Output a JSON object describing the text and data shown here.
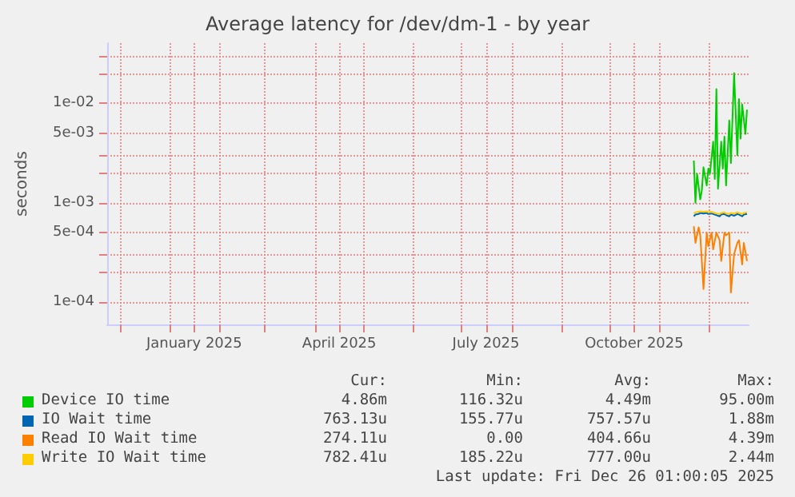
{
  "chart_data": {
    "type": "line",
    "title": "Average latency for /dev/dm-1 - by year",
    "ylabel": "seconds",
    "log": "y",
    "grid": true,
    "legend": "bottom",
    "marker": "none",
    "line_style": "solid",
    "xlim": [
      "2024-11-23",
      "2025-12-26"
    ],
    "xticks": [
      {
        "value": "2024-12-01",
        "label": null
      },
      {
        "value": "2025-01-01",
        "label": null
      },
      {
        "value": "2025-01-16",
        "label": "January 2025"
      },
      {
        "value": "2025-02-01",
        "label": null
      },
      {
        "value": "2025-03-01",
        "label": null
      },
      {
        "value": "2025-04-01",
        "label": null
      },
      {
        "value": "2025-04-16",
        "label": "April 2025"
      },
      {
        "value": "2025-05-01",
        "label": null
      },
      {
        "value": "2025-06-01",
        "label": null
      },
      {
        "value": "2025-07-01",
        "label": null
      },
      {
        "value": "2025-07-16",
        "label": "July 2025"
      },
      {
        "value": "2025-08-01",
        "label": null
      },
      {
        "value": "2025-09-01",
        "label": null
      },
      {
        "value": "2025-10-01",
        "label": null
      },
      {
        "value": "2025-10-16",
        "label": "October 2025"
      },
      {
        "value": "2025-11-01",
        "label": null
      },
      {
        "value": "2025-12-01",
        "label": null
      }
    ],
    "ylim": [
      6e-05,
      0.04
    ],
    "yticks": [
      {
        "value": 0.0001,
        "label": "1e-04"
      },
      {
        "value": 0.0002,
        "label": null
      },
      {
        "value": 0.0003,
        "label": null
      },
      {
        "value": 0.0005,
        "label": "5e-04"
      },
      {
        "value": 0.001,
        "label": "1e-03"
      },
      {
        "value": 0.002,
        "label": null
      },
      {
        "value": 0.003,
        "label": null
      },
      {
        "value": 0.005,
        "label": "5e-03"
      },
      {
        "value": 0.01,
        "label": "1e-02"
      },
      {
        "value": 0.02,
        "label": null
      },
      {
        "value": 0.03,
        "label": null
      }
    ],
    "series": [
      {
        "name": "Device IO time",
        "color": "#00cc00",
        "x": [
          "2025-11-22",
          "2025-11-23",
          "2025-11-24",
          "2025-11-26",
          "2025-11-27",
          "2025-11-28",
          "2025-11-30",
          "2025-12-01",
          "2025-12-02",
          "2025-12-04",
          "2025-12-05",
          "2025-12-06",
          "2025-12-07",
          "2025-12-09",
          "2025-12-10",
          "2025-12-11",
          "2025-12-12",
          "2025-12-14",
          "2025-12-15",
          "2025-12-16",
          "2025-12-17",
          "2025-12-19",
          "2025-12-20",
          "2025-12-21",
          "2025-12-22",
          "2025-12-24",
          "2025-12-25"
        ],
        "values": [
          0.00265,
          0.001,
          0.00195,
          0.00108,
          0.00134,
          0.00227,
          0.00149,
          0.0022,
          0.00195,
          0.0041,
          0.00173,
          0.0138,
          0.00138,
          0.0041,
          0.0022,
          0.0046,
          0.00149,
          0.0067,
          0.0025,
          0.0071,
          0.02,
          0.003,
          0.011,
          0.0044,
          0.0097,
          0.0049,
          0.0086
        ]
      },
      {
        "name": "IO Wait time",
        "color": "#0066b3",
        "x": [
          "2025-11-22",
          "2025-11-23",
          "2025-11-25",
          "2025-11-26",
          "2025-11-28",
          "2025-11-30",
          "2025-12-01",
          "2025-12-03",
          "2025-12-04",
          "2025-12-06",
          "2025-12-08",
          "2025-12-09",
          "2025-12-11",
          "2025-12-12",
          "2025-12-14",
          "2025-12-15",
          "2025-12-17",
          "2025-12-19",
          "2025-12-20",
          "2025-12-22",
          "2025-12-23",
          "2025-12-25"
        ],
        "values": [
          0.00073,
          0.00076,
          0.00077,
          0.00079,
          0.00078,
          0.00079,
          0.00077,
          0.00078,
          0.00077,
          0.00075,
          0.00073,
          0.00076,
          0.00077,
          0.00075,
          0.00073,
          0.00076,
          0.00074,
          0.00077,
          0.00076,
          0.00073,
          0.00076,
          0.00077
        ]
      },
      {
        "name": "Read IO Wait time",
        "color": "#ff8000",
        "x": [
          "2025-11-22",
          "2025-11-23",
          "2025-11-25",
          "2025-11-26",
          "2025-11-28",
          "2025-11-30",
          "2025-12-01",
          "2025-12-03",
          "2025-12-04",
          "2025-12-06",
          "2025-12-08",
          "2025-12-09",
          "2025-12-11",
          "2025-12-12",
          "2025-12-14",
          "2025-12-15",
          "2025-12-17",
          "2025-12-19",
          "2025-12-20",
          "2025-12-22",
          "2025-12-23",
          "2025-12-25"
        ],
        "values": [
          0.00058,
          0.000395,
          0.000566,
          0.00047,
          0.000136,
          0.0005,
          0.000366,
          0.0005,
          0.00034,
          0.0005,
          0.00042,
          0.00026,
          0.0005,
          0.00047,
          0.0005,
          0.000125,
          0.000305,
          0.000395,
          0.00042,
          0.00024,
          0.000395,
          0.00026
        ]
      },
      {
        "name": "Write IO Wait time",
        "color": "#ffcc00",
        "x": [
          "2025-11-22",
          "2025-11-23",
          "2025-11-25",
          "2025-11-26",
          "2025-11-28",
          "2025-11-30",
          "2025-12-01",
          "2025-12-03",
          "2025-12-04",
          "2025-12-06",
          "2025-12-08",
          "2025-12-09",
          "2025-12-11",
          "2025-12-12",
          "2025-12-14",
          "2025-12-15",
          "2025-12-17",
          "2025-12-19",
          "2025-12-20",
          "2025-12-22",
          "2025-12-23",
          "2025-12-25"
        ],
        "values": [
          0.00078,
          0.0008,
          0.00081,
          0.00082,
          0.00081,
          0.00082,
          0.0008,
          0.00081,
          0.0008,
          0.00078,
          0.00077,
          0.00079,
          0.0008,
          0.00078,
          0.00077,
          0.00079,
          0.00078,
          0.0008,
          0.00079,
          0.00077,
          0.00079,
          0.0008
        ]
      }
    ],
    "annotations": [
      "Cur:",
      "Min:",
      "Avg:",
      "Max:",
      "4.86m",
      "116.32u",
      "4.49m",
      "95.00m",
      "763.13u",
      "155.77u",
      "757.57u",
      "1.88m",
      "274.11u",
      "0.00",
      "404.66u",
      "4.39m",
      "782.41u",
      "185.22u",
      "777.00u",
      "2.44m",
      "Last update: Fri Dec 26 01:00:05 2025"
    ]
  }
}
